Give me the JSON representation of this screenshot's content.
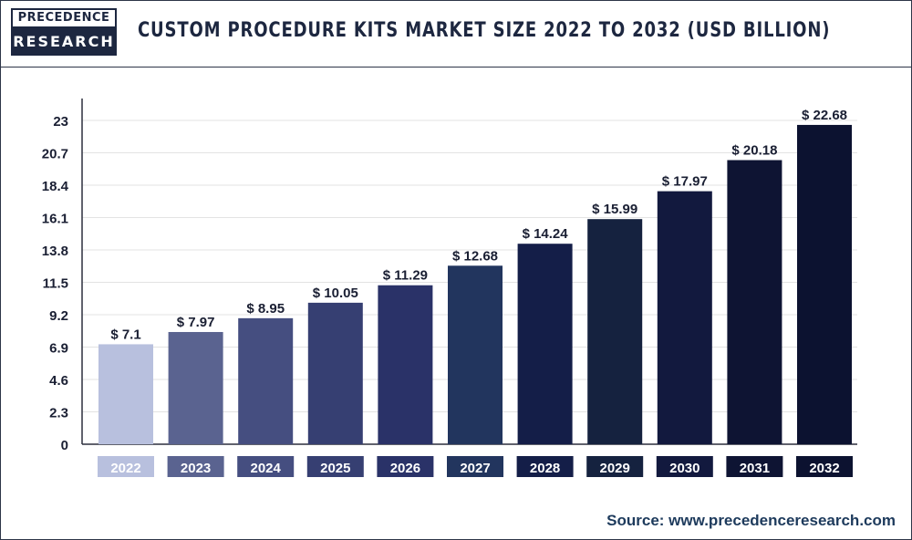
{
  "header": {
    "logo_top": "PRECEDENCE",
    "logo_bottom": "RESEARCH",
    "title": "CUSTOM PROCEDURE KITS MARKET SIZE 2022 TO 2032 (USD BILLION)"
  },
  "source": "Source: www.precedenceresearch.com",
  "chart_data": {
    "type": "bar",
    "title": "CUSTOM PROCEDURE KITS MARKET SIZE 2022 TO 2032 (USD BILLION)",
    "xlabel": "",
    "ylabel": "",
    "categories": [
      "2022",
      "2023",
      "2024",
      "2025",
      "2026",
      "2027",
      "2028",
      "2029",
      "2030",
      "2031",
      "2032"
    ],
    "values": [
      7.1,
      7.97,
      8.95,
      10.05,
      11.29,
      12.68,
      14.24,
      15.99,
      17.97,
      20.18,
      22.68
    ],
    "data_labels": [
      "$ 7.1",
      "$ 7.97",
      "$ 8.95",
      "$ 10.05",
      "$ 11.29",
      "$ 12.68",
      "$ 14.24",
      "$ 15.99",
      "$ 17.97",
      "$ 20.18",
      "$ 22.68"
    ],
    "ylim": [
      0,
      23
    ],
    "yticks": [
      "0",
      "2.3",
      "4.6",
      "6.9",
      "9.2",
      "11.5",
      "13.8",
      "16.1",
      "18.4",
      "20.7",
      "23"
    ],
    "grid": true,
    "legend": "none",
    "bar_colors": [
      "#b8c0de",
      "#5a6390",
      "#454e80",
      "#363f72",
      "#2a3268",
      "#22355e",
      "#141e48",
      "#15223f",
      "#12193e",
      "#0e1433",
      "#0c1230"
    ]
  }
}
